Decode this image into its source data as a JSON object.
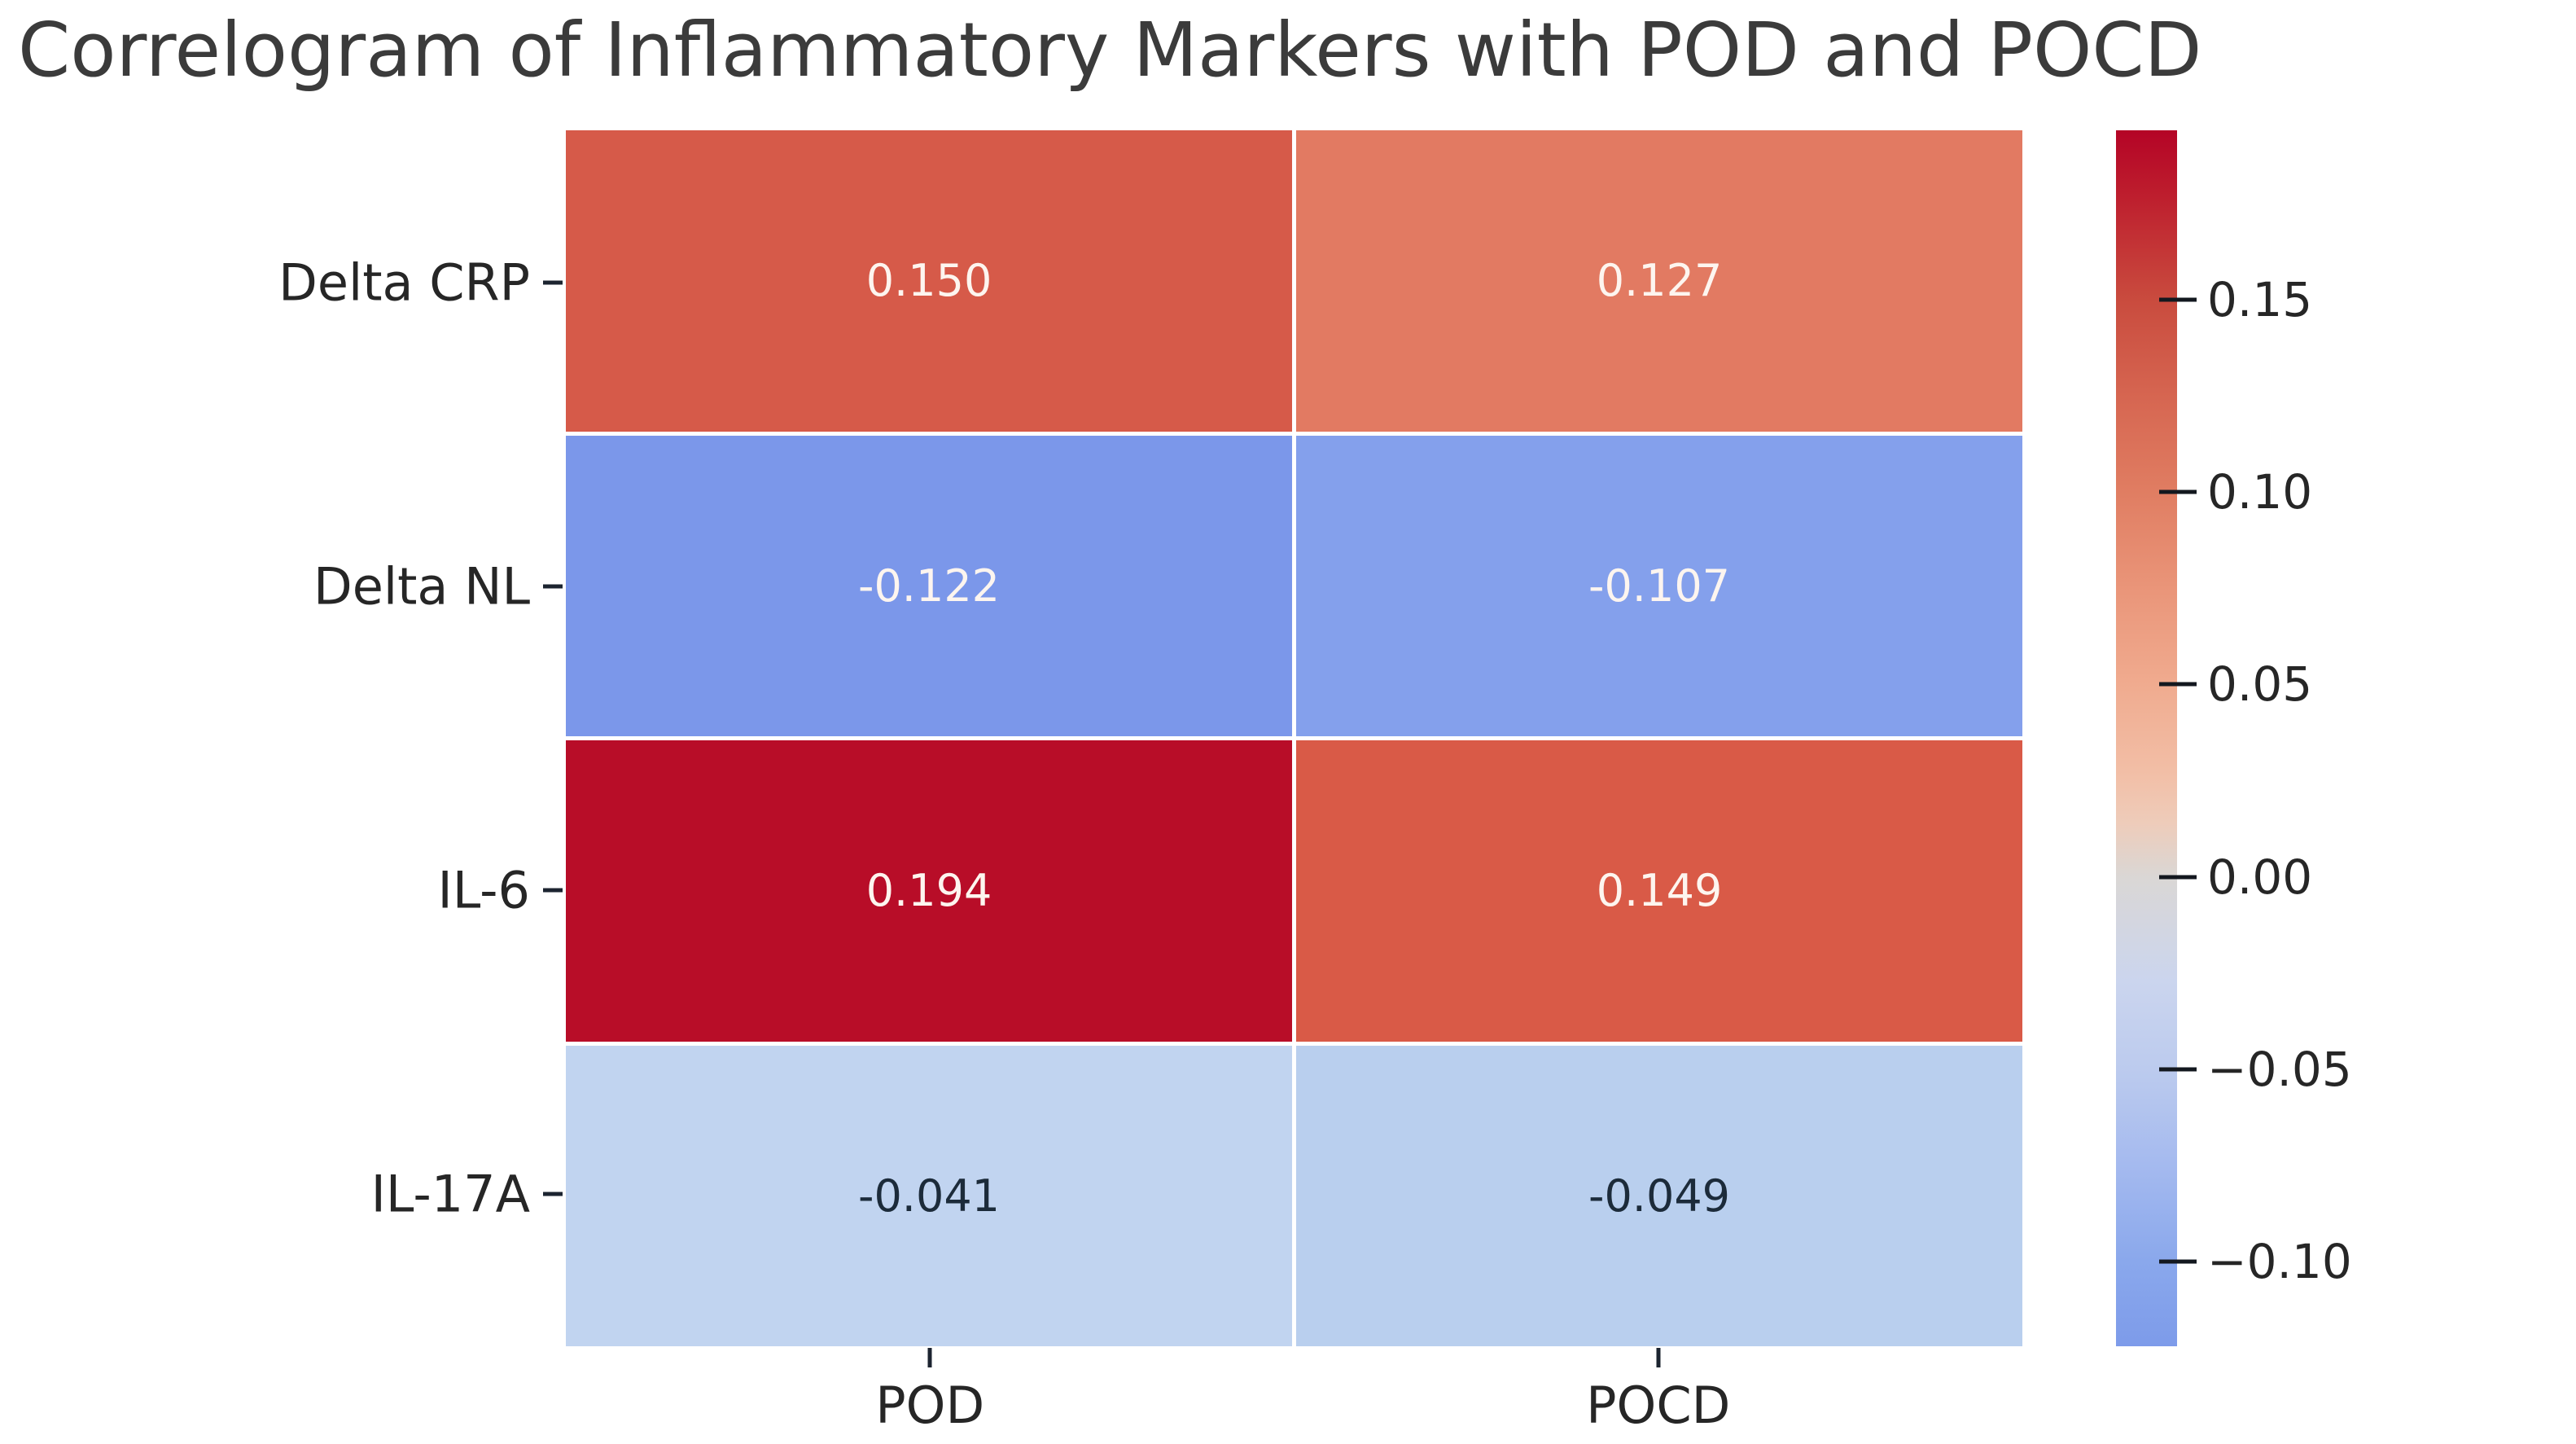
{
  "title": "Correlogram of Inflammatory Markers with POD and POCD",
  "chart_data": {
    "type": "heatmap",
    "title": "Correlogram of Inflammatory Markers with POD and POCD",
    "rows": [
      "Delta CRP",
      "Delta NL",
      "IL-6",
      "IL-17A"
    ],
    "columns": [
      "POD",
      "POCD"
    ],
    "values": [
      [
        0.15,
        0.127
      ],
      [
        -0.122,
        -0.107
      ],
      [
        0.194,
        0.149
      ],
      [
        -0.041,
        -0.049
      ]
    ],
    "value_labels": [
      [
        "0.150",
        "0.127"
      ],
      [
        "-0.122",
        "-0.107"
      ],
      [
        "0.194",
        "0.149"
      ],
      [
        "-0.041",
        "-0.049"
      ]
    ],
    "cell_colors": [
      [
        "#d65a49",
        "#e27a62"
      ],
      [
        "#7b97ea",
        "#84a0ec"
      ],
      [
        "#b80d28",
        "#d95a47"
      ],
      [
        "#c1d4f0",
        "#b9cfee"
      ]
    ],
    "text_colors": [
      [
        "#fdf5ef",
        "#fdf5ef"
      ],
      [
        "#fdf5ef",
        "#fdf5ef"
      ],
      [
        "#fdf5ef",
        "#fdf5ef"
      ],
      [
        "#1c2b3a",
        "#1c2b3a"
      ]
    ],
    "grid_line_color": "#ffffff",
    "colorbar": {
      "vmin": -0.122,
      "vmax": 0.194,
      "ticks": [
        {
          "label": "0.15",
          "pct": 13.92
        },
        {
          "label": "0.10",
          "pct": 29.75
        },
        {
          "label": "0.05",
          "pct": 45.57
        },
        {
          "label": "0.00",
          "pct": 61.39
        },
        {
          "label": "−0.05",
          "pct": 77.22
        },
        {
          "label": "−0.10",
          "pct": 93.04
        }
      ],
      "gradient": [
        {
          "pct": 0,
          "color": "#b40426"
        },
        {
          "pct": 5,
          "color": "#bd1c2d"
        },
        {
          "pct": 13.9,
          "color": "#c94b3e"
        },
        {
          "pct": 22,
          "color": "#d66651"
        },
        {
          "pct": 29.7,
          "color": "#e07d62"
        },
        {
          "pct": 38,
          "color": "#ea967a"
        },
        {
          "pct": 45.6,
          "color": "#f0ab8f"
        },
        {
          "pct": 53,
          "color": "#f2bfa7"
        },
        {
          "pct": 57,
          "color": "#eeccba"
        },
        {
          "pct": 61.4,
          "color": "#dad7d5"
        },
        {
          "pct": 70,
          "color": "#cbd5ee"
        },
        {
          "pct": 77.2,
          "color": "#bccbee"
        },
        {
          "pct": 85,
          "color": "#a5baef"
        },
        {
          "pct": 93,
          "color": "#8aa8ec"
        },
        {
          "pct": 100,
          "color": "#7d9bea"
        }
      ]
    }
  }
}
